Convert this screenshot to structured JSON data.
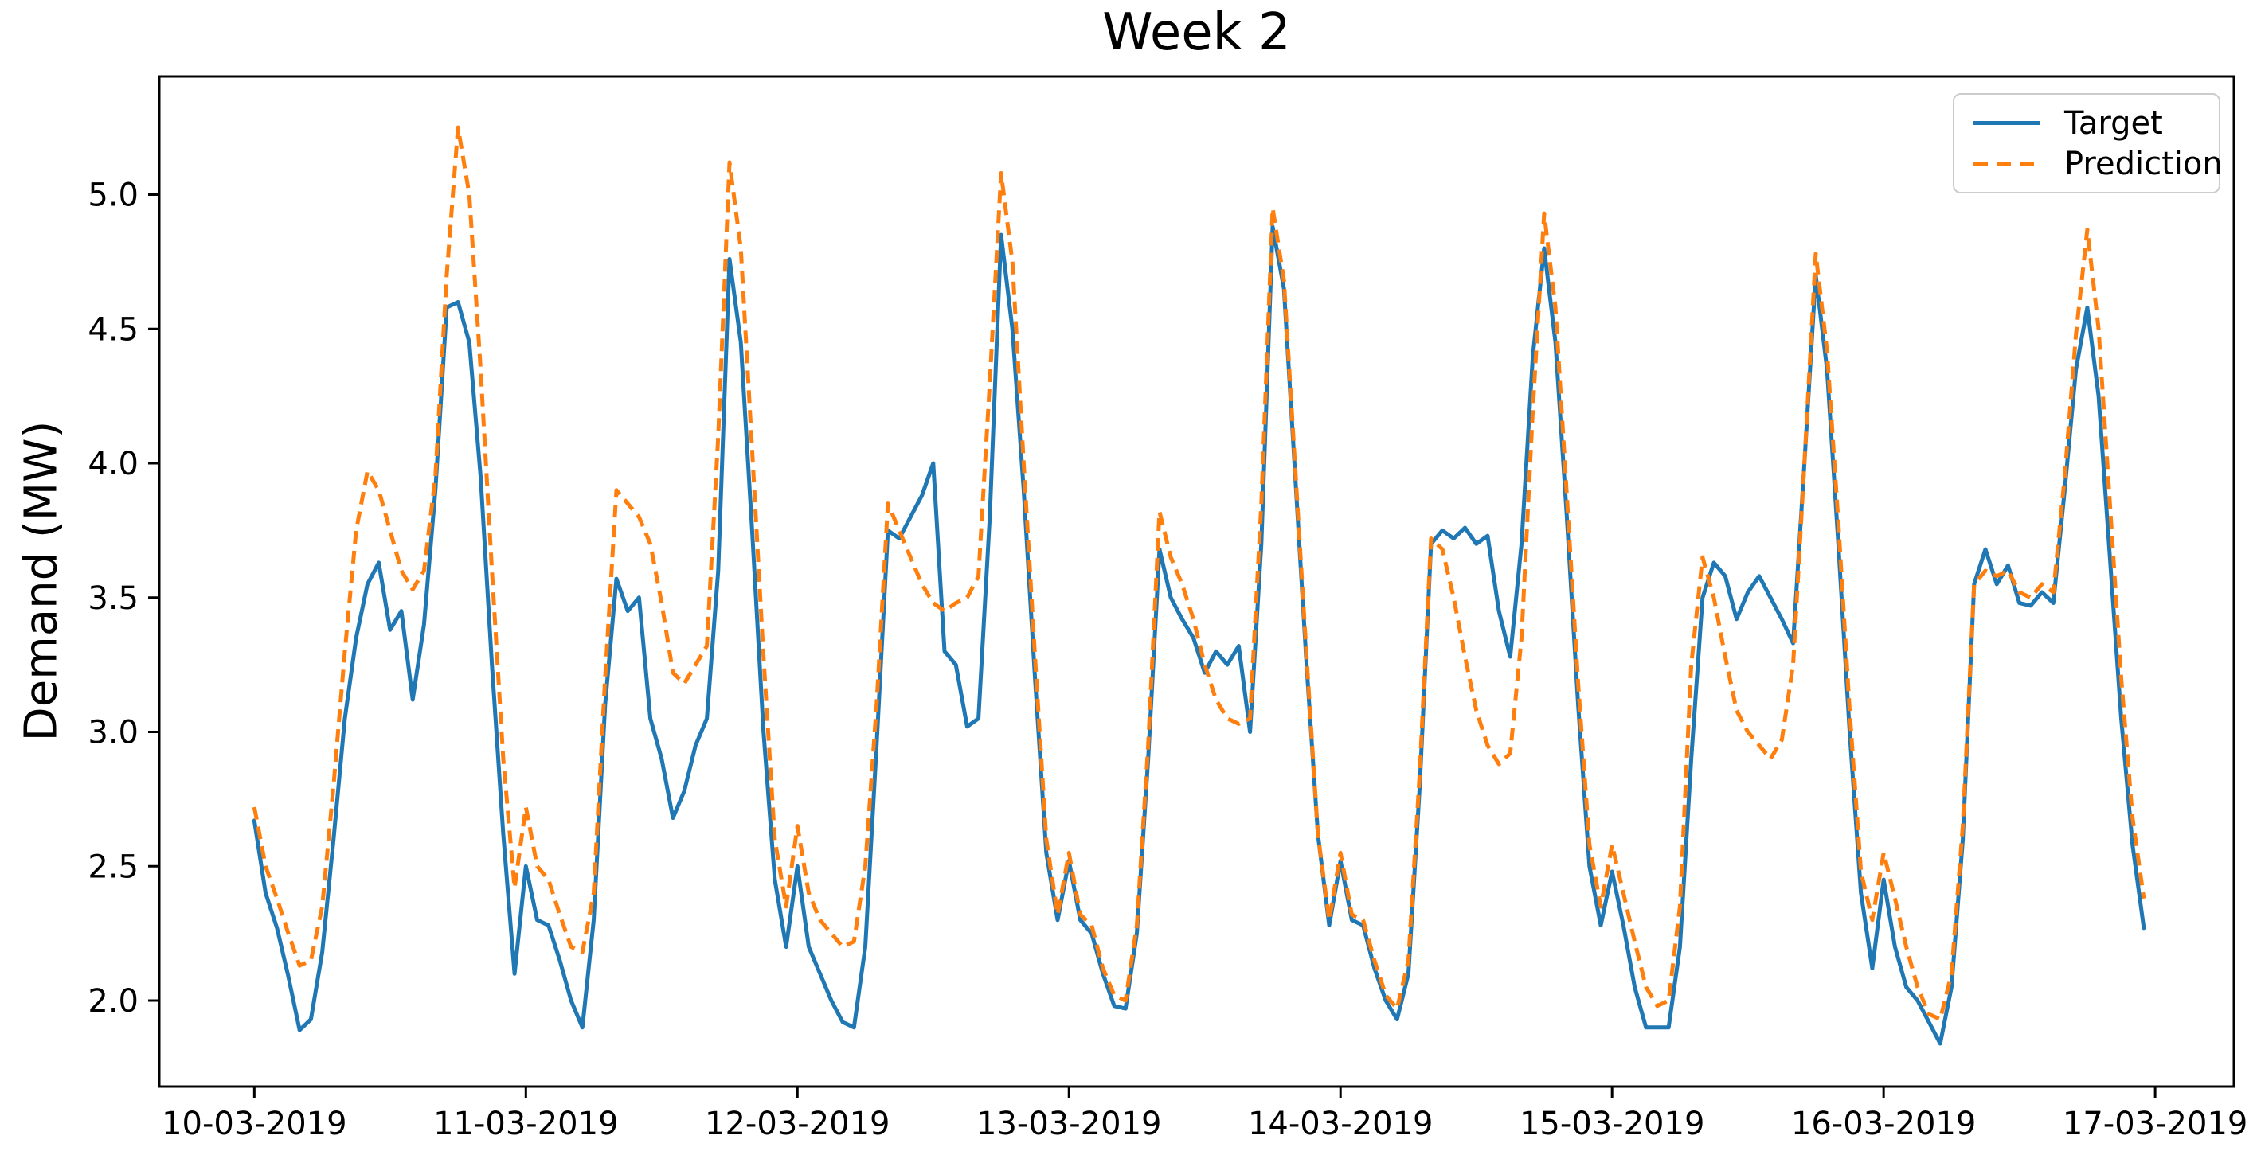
{
  "title": "Week 2",
  "ylabel": "Demand (MW)",
  "legend": {
    "target": "Target",
    "prediction": "Prediction"
  },
  "colors": {
    "target": "#1f77b4",
    "prediction": "#ff7f0e",
    "axis": "#000000",
    "legend_border": "#cccccc"
  },
  "chart_data": {
    "type": "line",
    "title": "Week 2",
    "xlabel": "",
    "ylabel": "Demand (MW)",
    "x_start": "10-03-2019 00:00",
    "x_step_hours": 1,
    "x_tick_labels": [
      "10-03-2019",
      "11-03-2019",
      "12-03-2019",
      "13-03-2019",
      "14-03-2019",
      "15-03-2019",
      "16-03-2019",
      "17-03-2019"
    ],
    "y_ticks": [
      2.0,
      2.5,
      3.0,
      3.5,
      4.0,
      4.5,
      5.0
    ],
    "xlim_days": [
      -0.35,
      7.29
    ],
    "ylim": [
      1.68,
      5.44
    ],
    "grid": false,
    "legend_position": "upper right",
    "series": [
      {
        "name": "Target",
        "color": "#1f77b4",
        "style": "solid",
        "values": [
          2.67,
          2.4,
          2.27,
          2.09,
          1.89,
          1.93,
          2.18,
          2.6,
          3.05,
          3.35,
          3.55,
          3.63,
          3.38,
          3.45,
          3.12,
          3.4,
          3.9,
          4.58,
          4.6,
          4.45,
          3.95,
          3.25,
          2.62,
          2.1,
          2.5,
          2.3,
          2.28,
          2.15,
          2.0,
          1.9,
          2.3,
          3.1,
          3.57,
          3.45,
          3.5,
          3.05,
          2.9,
          2.68,
          2.78,
          2.95,
          3.05,
          3.6,
          4.76,
          4.45,
          3.75,
          3.0,
          2.45,
          2.2,
          2.5,
          2.2,
          2.1,
          2.0,
          1.92,
          1.9,
          2.2,
          2.95,
          3.75,
          3.72,
          3.8,
          3.88,
          4.0,
          3.3,
          3.25,
          3.02,
          3.05,
          3.8,
          4.85,
          4.5,
          3.9,
          3.2,
          2.55,
          2.3,
          2.52,
          2.3,
          2.25,
          2.1,
          1.98,
          1.97,
          2.25,
          2.9,
          3.68,
          3.5,
          3.42,
          3.35,
          3.22,
          3.3,
          3.25,
          3.32,
          3.0,
          3.7,
          4.88,
          4.65,
          3.95,
          3.25,
          2.62,
          2.28,
          2.52,
          2.3,
          2.28,
          2.12,
          2.0,
          1.93,
          2.1,
          2.8,
          3.7,
          3.75,
          3.72,
          3.76,
          3.7,
          3.73,
          3.45,
          3.28,
          3.7,
          4.4,
          4.8,
          4.45,
          3.8,
          3.1,
          2.5,
          2.28,
          2.48,
          2.28,
          2.05,
          1.9,
          1.9,
          1.9,
          2.2,
          2.9,
          3.5,
          3.63,
          3.58,
          3.42,
          3.52,
          3.58,
          3.5,
          3.42,
          3.33,
          4.0,
          4.7,
          4.35,
          3.7,
          3.0,
          2.4,
          2.12,
          2.45,
          2.2,
          2.05,
          2.0,
          1.92,
          1.84,
          2.05,
          2.6,
          3.55,
          3.68,
          3.55,
          3.62,
          3.48,
          3.47,
          3.52,
          3.48,
          3.9,
          4.35,
          4.58,
          4.25,
          3.65,
          3.05,
          2.58,
          2.27
        ]
      },
      {
        "name": "Prediction",
        "color": "#ff7f0e",
        "style": "dashed",
        "values": [
          2.72,
          2.5,
          2.38,
          2.25,
          2.13,
          2.15,
          2.35,
          2.8,
          3.3,
          3.75,
          3.97,
          3.9,
          3.75,
          3.6,
          3.53,
          3.6,
          3.95,
          4.7,
          5.25,
          5.0,
          4.35,
          3.6,
          2.9,
          2.42,
          2.72,
          2.5,
          2.45,
          2.32,
          2.2,
          2.18,
          2.4,
          3.2,
          3.9,
          3.85,
          3.8,
          3.7,
          3.48,
          3.22,
          3.18,
          3.25,
          3.32,
          4.1,
          5.12,
          4.8,
          4.05,
          3.28,
          2.6,
          2.35,
          2.65,
          2.4,
          2.3,
          2.25,
          2.2,
          2.22,
          2.5,
          3.1,
          3.85,
          3.75,
          3.65,
          3.55,
          3.48,
          3.45,
          3.48,
          3.5,
          3.58,
          4.3,
          5.08,
          4.75,
          4.0,
          3.28,
          2.6,
          2.32,
          2.55,
          2.32,
          2.28,
          2.12,
          2.02,
          2.0,
          2.28,
          2.95,
          3.82,
          3.65,
          3.55,
          3.42,
          3.25,
          3.12,
          3.05,
          3.03,
          3.05,
          3.85,
          4.95,
          4.68,
          3.98,
          3.28,
          2.62,
          2.3,
          2.55,
          2.32,
          2.3,
          2.15,
          2.02,
          1.97,
          2.15,
          2.85,
          3.72,
          3.68,
          3.5,
          3.28,
          3.08,
          2.95,
          2.88,
          2.92,
          3.35,
          4.2,
          4.93,
          4.58,
          3.88,
          3.18,
          2.58,
          2.35,
          2.58,
          2.4,
          2.22,
          2.05,
          1.98,
          2.0,
          2.35,
          3.25,
          3.65,
          3.5,
          3.28,
          3.08,
          3.0,
          2.95,
          2.9,
          2.97,
          3.25,
          4.0,
          4.78,
          4.42,
          3.78,
          3.08,
          2.48,
          2.3,
          2.55,
          2.38,
          2.2,
          2.05,
          1.95,
          1.93,
          2.1,
          2.65,
          3.55,
          3.6,
          3.58,
          3.6,
          3.52,
          3.5,
          3.55,
          3.52,
          3.95,
          4.48,
          4.87,
          4.5,
          3.85,
          3.2,
          2.68,
          2.38
        ]
      }
    ]
  }
}
